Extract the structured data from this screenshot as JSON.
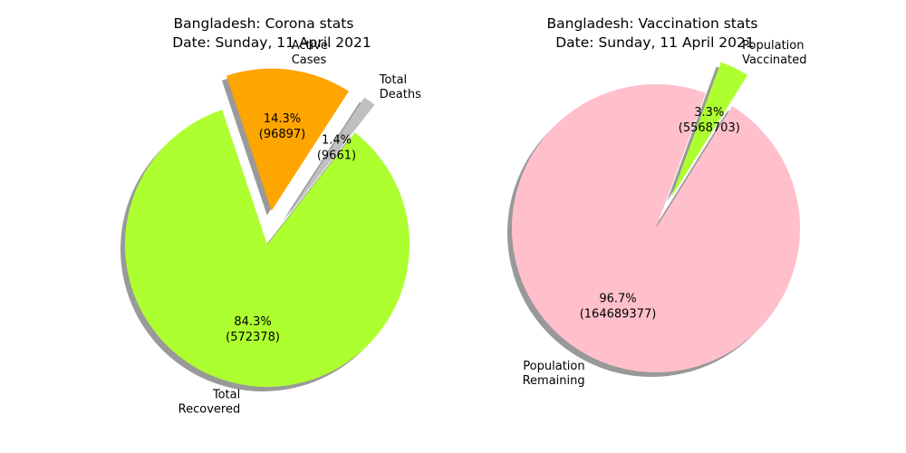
{
  "chart_data": [
    {
      "type": "pie",
      "title": "Bangladesh: Corona stats",
      "subtitle": "Date: Sunday, 11 April 2021",
      "shadow": true,
      "slices": [
        {
          "label": "Total\nDeaths",
          "value": 9661,
          "percent": "1.4%",
          "count_text": "(9661)",
          "color": "#c0c0c0",
          "exploded": true
        },
        {
          "label": "Active\nCases",
          "value": 96897,
          "percent": "14.3%",
          "count_text": "(96897)",
          "color": "#ffa500",
          "exploded": true
        },
        {
          "label": "Total\nRecovered",
          "value": 572378,
          "percent": "84.3%",
          "count_text": "(572378)",
          "color": "#adff2f",
          "exploded": false
        }
      ]
    },
    {
      "type": "pie",
      "title": "Bangladesh: Vaccination stats",
      "subtitle": "Date: Sunday, 11 April 2021",
      "shadow": true,
      "slices": [
        {
          "label": "Population\nVaccinated",
          "value": 5568703,
          "percent": "3.3%",
          "count_text": "(5568703)",
          "color": "#adff2f",
          "exploded": true
        },
        {
          "label": "Population\nRemaining",
          "value": 164689377,
          "percent": "96.7%",
          "count_text": "(164689377)",
          "color": "#ffc0cb",
          "exploded": false
        }
      ]
    }
  ]
}
